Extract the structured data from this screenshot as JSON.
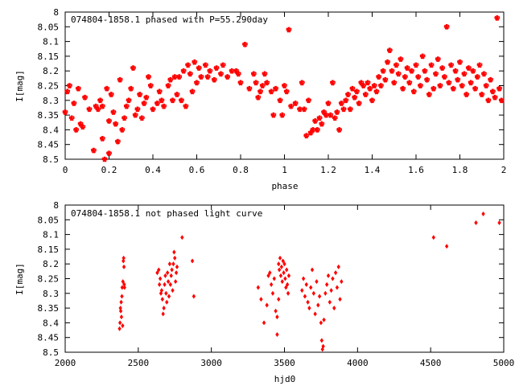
{
  "chart_data": [
    {
      "type": "scatter",
      "title": "074804-1858.1 phased with P=55.290day",
      "xlabel": "phase",
      "ylabel": "I[mag]",
      "xlim": [
        0,
        2
      ],
      "ylim": [
        8.5,
        8.0
      ],
      "y_inverted": true,
      "grid": false,
      "legend": "none",
      "marker_color": "#ff0000",
      "x_ticks": [
        "0",
        "0.2",
        "0.4",
        "0.6",
        "0.8",
        "1",
        "1.2",
        "1.4",
        "1.6",
        "1.8",
        "2"
      ],
      "y_ticks": [
        "8",
        "8.05",
        "8.1",
        "8.15",
        "8.2",
        "8.25",
        "8.3",
        "8.35",
        "8.4",
        "8.45",
        "8.5"
      ],
      "points": [
        [
          0.0,
          8.34
        ],
        [
          0.01,
          8.27
        ],
        [
          0.02,
          8.25
        ],
        [
          0.03,
          8.36
        ],
        [
          0.04,
          8.31
        ],
        [
          0.05,
          8.4
        ],
        [
          0.06,
          8.26
        ],
        [
          0.07,
          8.38
        ],
        [
          0.08,
          8.39
        ],
        [
          0.09,
          8.29
        ],
        [
          0.11,
          8.33
        ],
        [
          0.13,
          8.47
        ],
        [
          0.14,
          8.32
        ],
        [
          0.15,
          8.33
        ],
        [
          0.16,
          8.3
        ],
        [
          0.17,
          8.32
        ],
        [
          0.17,
          8.43
        ],
        [
          0.18,
          8.5
        ],
        [
          0.19,
          8.26
        ],
        [
          0.2,
          8.37
        ],
        [
          0.2,
          8.48
        ],
        [
          0.21,
          8.28
        ],
        [
          0.22,
          8.34
        ],
        [
          0.23,
          8.38
        ],
        [
          0.24,
          8.44
        ],
        [
          0.25,
          8.23
        ],
        [
          0.26,
          8.4
        ],
        [
          0.27,
          8.36
        ],
        [
          0.28,
          8.32
        ],
        [
          0.29,
          8.3
        ],
        [
          0.3,
          8.26
        ],
        [
          0.31,
          8.19
        ],
        [
          0.32,
          8.35
        ],
        [
          0.33,
          8.33
        ],
        [
          0.34,
          8.28
        ],
        [
          0.35,
          8.36
        ],
        [
          0.36,
          8.31
        ],
        [
          0.37,
          8.29
        ],
        [
          0.38,
          8.22
        ],
        [
          0.39,
          8.25
        ],
        [
          0.4,
          8.33
        ],
        [
          0.42,
          8.31
        ],
        [
          0.43,
          8.27
        ],
        [
          0.44,
          8.3
        ],
        [
          0.45,
          8.32
        ],
        [
          0.47,
          8.25
        ],
        [
          0.48,
          8.23
        ],
        [
          0.49,
          8.3
        ],
        [
          0.5,
          8.22
        ],
        [
          0.51,
          8.28
        ],
        [
          0.52,
          8.22
        ],
        [
          0.53,
          8.3
        ],
        [
          0.54,
          8.2
        ],
        [
          0.55,
          8.32
        ],
        [
          0.56,
          8.18
        ],
        [
          0.57,
          8.21
        ],
        [
          0.58,
          8.27
        ],
        [
          0.59,
          8.17
        ],
        [
          0.6,
          8.24
        ],
        [
          0.61,
          8.19
        ],
        [
          0.62,
          8.22
        ],
        [
          0.64,
          8.18
        ],
        [
          0.65,
          8.22
        ],
        [
          0.66,
          8.2
        ],
        [
          0.68,
          8.23
        ],
        [
          0.69,
          8.19
        ],
        [
          0.71,
          8.21
        ],
        [
          0.72,
          8.18
        ],
        [
          0.74,
          8.22
        ],
        [
          0.76,
          8.2
        ],
        [
          0.78,
          8.2
        ],
        [
          0.79,
          8.21
        ],
        [
          0.8,
          8.24
        ],
        [
          0.82,
          8.11
        ],
        [
          0.84,
          8.26
        ],
        [
          0.86,
          8.21
        ],
        [
          0.87,
          8.24
        ],
        [
          0.88,
          8.29
        ],
        [
          0.89,
          8.27
        ],
        [
          0.9,
          8.25
        ],
        [
          0.91,
          8.21
        ],
        [
          0.92,
          8.24
        ],
        [
          0.94,
          8.27
        ],
        [
          0.95,
          8.35
        ],
        [
          0.96,
          8.26
        ],
        [
          0.98,
          8.3
        ],
        [
          0.99,
          8.35
        ],
        [
          1.0,
          8.25
        ],
        [
          1.01,
          8.27
        ],
        [
          1.02,
          8.06
        ],
        [
          1.03,
          8.32
        ],
        [
          1.05,
          8.31
        ],
        [
          1.07,
          8.33
        ],
        [
          1.08,
          8.24
        ],
        [
          1.09,
          8.33
        ],
        [
          1.1,
          8.42
        ],
        [
          1.11,
          8.3
        ],
        [
          1.12,
          8.41
        ],
        [
          1.13,
          8.4
        ],
        [
          1.14,
          8.37
        ],
        [
          1.15,
          8.4
        ],
        [
          1.16,
          8.36
        ],
        [
          1.17,
          8.38
        ],
        [
          1.18,
          8.34
        ],
        [
          1.19,
          8.35
        ],
        [
          1.2,
          8.31
        ],
        [
          1.21,
          8.35
        ],
        [
          1.22,
          8.24
        ],
        [
          1.23,
          8.36
        ],
        [
          1.24,
          8.34
        ],
        [
          1.25,
          8.4
        ],
        [
          1.26,
          8.31
        ],
        [
          1.27,
          8.33
        ],
        [
          1.28,
          8.3
        ],
        [
          1.29,
          8.28
        ],
        [
          1.3,
          8.33
        ],
        [
          1.31,
          8.26
        ],
        [
          1.32,
          8.29
        ],
        [
          1.33,
          8.27
        ],
        [
          1.34,
          8.31
        ],
        [
          1.35,
          8.24
        ],
        [
          1.36,
          8.25
        ],
        [
          1.37,
          8.28
        ],
        [
          1.38,
          8.24
        ],
        [
          1.39,
          8.26
        ],
        [
          1.4,
          8.3
        ],
        [
          1.41,
          8.25
        ],
        [
          1.42,
          8.27
        ],
        [
          1.43,
          8.22
        ],
        [
          1.44,
          8.25
        ],
        [
          1.45,
          8.2
        ],
        [
          1.46,
          8.23
        ],
        [
          1.47,
          8.17
        ],
        [
          1.48,
          8.13
        ],
        [
          1.49,
          8.2
        ],
        [
          1.5,
          8.24
        ],
        [
          1.51,
          8.18
        ],
        [
          1.52,
          8.21
        ],
        [
          1.53,
          8.16
        ],
        [
          1.54,
          8.26
        ],
        [
          1.55,
          8.22
        ],
        [
          1.56,
          8.19
        ],
        [
          1.57,
          8.24
        ],
        [
          1.58,
          8.2
        ],
        [
          1.59,
          8.27
        ],
        [
          1.6,
          8.18
        ],
        [
          1.61,
          8.22
        ],
        [
          1.62,
          8.25
        ],
        [
          1.63,
          8.15
        ],
        [
          1.64,
          8.2
        ],
        [
          1.65,
          8.23
        ],
        [
          1.66,
          8.28
        ],
        [
          1.67,
          8.18
        ],
        [
          1.68,
          8.26
        ],
        [
          1.69,
          8.21
        ],
        [
          1.7,
          8.16
        ],
        [
          1.71,
          8.25
        ],
        [
          1.72,
          8.19
        ],
        [
          1.73,
          8.22
        ],
        [
          1.74,
          8.05
        ],
        [
          1.75,
          8.24
        ],
        [
          1.76,
          8.18
        ],
        [
          1.77,
          8.26
        ],
        [
          1.78,
          8.2
        ],
        [
          1.79,
          8.23
        ],
        [
          1.8,
          8.17
        ],
        [
          1.81,
          8.25
        ],
        [
          1.82,
          8.21
        ],
        [
          1.83,
          8.28
        ],
        [
          1.84,
          8.19
        ],
        [
          1.85,
          8.24
        ],
        [
          1.86,
          8.2
        ],
        [
          1.87,
          8.26
        ],
        [
          1.88,
          8.22
        ],
        [
          1.89,
          8.18
        ],
        [
          1.9,
          8.28
        ],
        [
          1.91,
          8.21
        ],
        [
          1.92,
          8.25
        ],
        [
          1.93,
          8.3
        ],
        [
          1.94,
          8.23
        ],
        [
          1.95,
          8.27
        ],
        [
          1.96,
          8.29
        ],
        [
          1.97,
          8.02
        ],
        [
          1.98,
          8.26
        ],
        [
          1.99,
          8.3
        ]
      ]
    },
    {
      "type": "scatter",
      "title": "074804-1858.1 not phased light curve",
      "xlabel": "hjd0",
      "ylabel": "I[mag]",
      "xlim": [
        2000,
        5000
      ],
      "ylim": [
        8.5,
        8.0
      ],
      "y_inverted": true,
      "grid": false,
      "legend": "none",
      "marker_color": "#ff0000",
      "x_ticks": [
        "2000",
        "2500",
        "3000",
        "3500",
        "4000",
        "4500",
        "5000"
      ],
      "y_ticks": [
        "8",
        "8.05",
        "8.1",
        "8.15",
        "8.2",
        "8.25",
        "8.3",
        "8.35",
        "8.4",
        "8.45",
        "8.5"
      ],
      "points": [
        [
          2372,
          8.42
        ],
        [
          2375,
          8.4
        ],
        [
          2378,
          8.35
        ],
        [
          2380,
          8.36
        ],
        [
          2383,
          8.33
        ],
        [
          2385,
          8.38
        ],
        [
          2388,
          8.31
        ],
        [
          2390,
          8.28
        ],
        [
          2393,
          8.41
        ],
        [
          2395,
          8.26
        ],
        [
          2398,
          8.19
        ],
        [
          2400,
          8.18
        ],
        [
          2402,
          8.21
        ],
        [
          2404,
          8.27
        ],
        [
          2406,
          8.28
        ],
        [
          2630,
          8.23
        ],
        [
          2640,
          8.22
        ],
        [
          2645,
          8.27
        ],
        [
          2650,
          8.25
        ],
        [
          2655,
          8.3
        ],
        [
          2660,
          8.29
        ],
        [
          2665,
          8.32
        ],
        [
          2670,
          8.37
        ],
        [
          2675,
          8.35
        ],
        [
          2680,
          8.27
        ],
        [
          2685,
          8.24
        ],
        [
          2690,
          8.3
        ],
        [
          2695,
          8.33
        ],
        [
          2700,
          8.23
        ],
        [
          2705,
          8.26
        ],
        [
          2710,
          8.31
        ],
        [
          2715,
          8.2
        ],
        [
          2720,
          8.27
        ],
        [
          2725,
          8.24
        ],
        [
          2730,
          8.22
        ],
        [
          2735,
          8.29
        ],
        [
          2740,
          8.2
        ],
        [
          2745,
          8.16
        ],
        [
          2750,
          8.18
        ],
        [
          2755,
          8.26
        ],
        [
          2760,
          8.23
        ],
        [
          2765,
          8.21
        ],
        [
          2800,
          8.11
        ],
        [
          2870,
          8.19
        ],
        [
          2880,
          8.31
        ],
        [
          3320,
          8.28
        ],
        [
          3340,
          8.32
        ],
        [
          3360,
          8.4
        ],
        [
          3380,
          8.34
        ],
        [
          3390,
          8.24
        ],
        [
          3400,
          8.23
        ],
        [
          3410,
          8.27
        ],
        [
          3420,
          8.3
        ],
        [
          3430,
          8.25
        ],
        [
          3440,
          8.36
        ],
        [
          3450,
          8.38
        ],
        [
          3460,
          8.2
        ],
        [
          3465,
          8.22
        ],
        [
          3470,
          8.18
        ],
        [
          3475,
          8.24
        ],
        [
          3480,
          8.21
        ],
        [
          3485,
          8.26
        ],
        [
          3490,
          8.19
        ],
        [
          3495,
          8.23
        ],
        [
          3500,
          8.2
        ],
        [
          3505,
          8.25
        ],
        [
          3510,
          8.28
        ],
        [
          3515,
          8.22
        ],
        [
          3520,
          8.27
        ],
        [
          3525,
          8.3
        ],
        [
          3530,
          8.24
        ],
        [
          3450,
          8.44
        ],
        [
          3460,
          8.32
        ],
        [
          3620,
          8.29
        ],
        [
          3630,
          8.25
        ],
        [
          3640,
          8.31
        ],
        [
          3650,
          8.27
        ],
        [
          3660,
          8.33
        ],
        [
          3670,
          8.35
        ],
        [
          3680,
          8.28
        ],
        [
          3690,
          8.22
        ],
        [
          3700,
          8.3
        ],
        [
          3710,
          8.37
        ],
        [
          3720,
          8.26
        ],
        [
          3730,
          8.34
        ],
        [
          3740,
          8.31
        ],
        [
          3750,
          8.4
        ],
        [
          3755,
          8.46
        ],
        [
          3760,
          8.49
        ],
        [
          3765,
          8.48
        ],
        [
          3770,
          8.39
        ],
        [
          3780,
          8.3
        ],
        [
          3790,
          8.27
        ],
        [
          3800,
          8.24
        ],
        [
          3810,
          8.33
        ],
        [
          3820,
          8.29
        ],
        [
          3830,
          8.25
        ],
        [
          3840,
          8.35
        ],
        [
          3850,
          8.23
        ],
        [
          3860,
          8.28
        ],
        [
          3870,
          8.21
        ],
        [
          3880,
          8.32
        ],
        [
          3890,
          8.26
        ],
        [
          4520,
          8.11
        ],
        [
          4610,
          8.14
        ],
        [
          4810,
          8.06
        ],
        [
          4860,
          8.03
        ],
        [
          4970,
          8.06
        ]
      ]
    }
  ]
}
